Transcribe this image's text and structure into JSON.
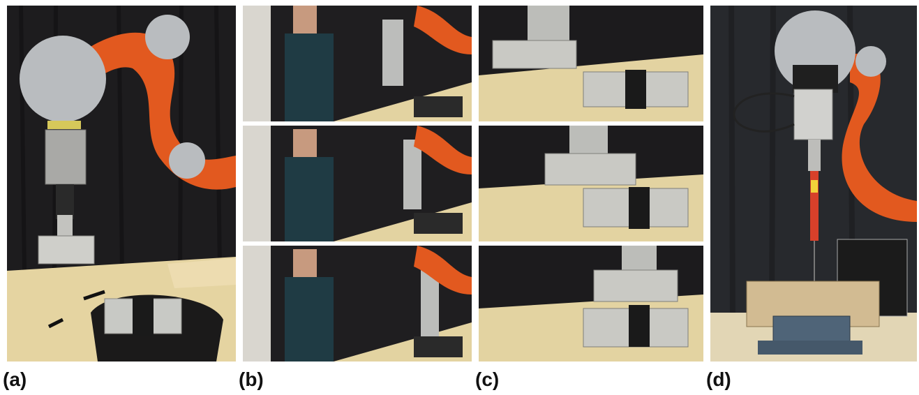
{
  "figure": {
    "panels": [
      {
        "id": "a",
        "label": "(a)",
        "photo_subject": "robot-arm-holding-aluminium-profile-above-table"
      },
      {
        "id": "b",
        "label": "(b)",
        "photo_subject": "person-demonstrating-next-to-robot-three-frames"
      },
      {
        "id": "c",
        "label": "(c)",
        "photo_subject": "aluminium-profile-insertion-sequence-three-frames"
      },
      {
        "id": "d",
        "label": "(d)",
        "photo_subject": "robot-arm-with-screwdriver-over-wooden-block"
      }
    ],
    "colors": {
      "robot_orange": "#e2591f",
      "robot_silver": "#b9bcbf",
      "curtain_dark": "#1c1c1e",
      "table_beige": "#e6d6a4",
      "aluminium": "#c9c9c4"
    }
  }
}
